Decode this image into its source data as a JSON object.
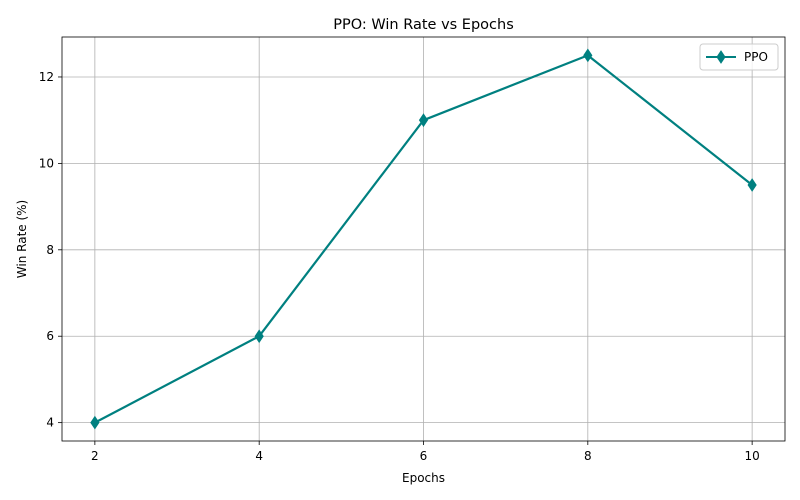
{
  "chart_data": {
    "type": "line",
    "title": "PPO: Win Rate vs Epochs",
    "xlabel": "Epochs",
    "ylabel": "Win Rate (%)",
    "x": [
      2,
      4,
      6,
      8,
      10
    ],
    "series": [
      {
        "name": "PPO",
        "values": [
          4,
          6,
          11,
          12.5,
          9.5
        ],
        "color": "#008080",
        "marker": "thin-diamond"
      }
    ],
    "xlim": [
      1.6,
      10.4
    ],
    "ylim": [
      3.575,
      12.925
    ],
    "xticks": [
      2,
      4,
      6,
      8,
      10
    ],
    "yticks": [
      4,
      6,
      8,
      10,
      12
    ],
    "grid": true,
    "legend_position": "top-right"
  }
}
